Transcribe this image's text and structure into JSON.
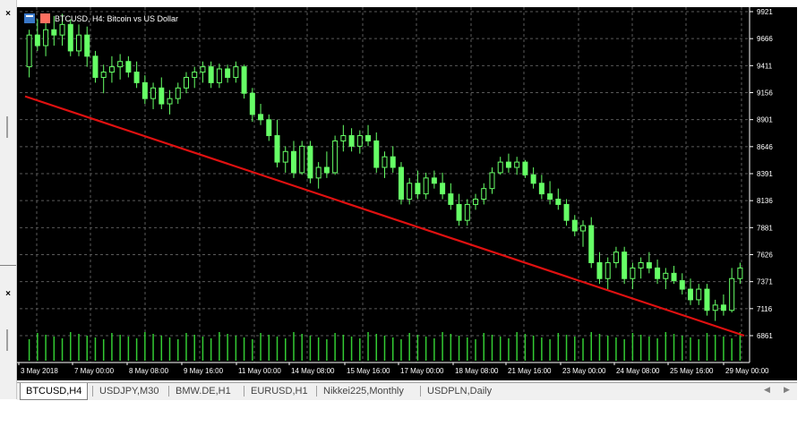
{
  "window": {
    "title": "BTCUSD, H4:  Bitcoin vs US Dollar"
  },
  "panel": {
    "close_label": "×"
  },
  "colors": {
    "background": "#000000",
    "grid": "#5a5a5a",
    "bull": "#66ff66",
    "bear": "#66ff66",
    "volume": "#33cc33",
    "trendline": "#e01010",
    "axis_text": "#ffffff"
  },
  "chart_data": {
    "type": "candlestick",
    "symbol": "BTCUSD",
    "timeframe": "H4",
    "title": "BTCUSD, H4:  Bitcoin vs US Dollar",
    "ylim": [
      6800,
      9921
    ],
    "price_ticks": [
      "9921",
      "9666",
      "9411",
      "9156",
      "8901",
      "8646",
      "8391",
      "8136",
      "7881",
      "7626",
      "7371",
      "7116",
      "6861"
    ],
    "date_labels": [
      "3 May 2018",
      "7 May 00:00",
      "8 May 08:00",
      "9 May 16:00",
      "11 May 00:00",
      "14 May 08:00",
      "15 May 16:00",
      "17 May 00:00",
      "18 May 08:00",
      "21 May 16:00",
      "23 May 00:00",
      "24 May 08:00",
      "25 May 16:00",
      "29 May 00:00"
    ],
    "candles": [
      [
        9400,
        9750,
        9300,
        9700
      ],
      [
        9700,
        9850,
        9550,
        9600
      ],
      [
        9600,
        9820,
        9500,
        9750
      ],
      [
        9750,
        9880,
        9600,
        9700
      ],
      [
        9700,
        9900,
        9600,
        9800
      ],
      [
        9800,
        9850,
        9500,
        9550
      ],
      [
        9550,
        9800,
        9500,
        9700
      ],
      [
        9700,
        9780,
        9400,
        9500
      ],
      [
        9500,
        9550,
        9250,
        9300
      ],
      [
        9300,
        9420,
        9150,
        9350
      ],
      [
        9350,
        9500,
        9250,
        9400
      ],
      [
        9400,
        9520,
        9280,
        9450
      ],
      [
        9450,
        9500,
        9300,
        9350
      ],
      [
        9350,
        9450,
        9200,
        9250
      ],
      [
        9250,
        9320,
        9050,
        9100
      ],
      [
        9100,
        9250,
        9000,
        9200
      ],
      [
        9200,
        9300,
        9000,
        9050
      ],
      [
        9050,
        9180,
        8950,
        9100
      ],
      [
        9100,
        9250,
        9050,
        9200
      ],
      [
        9200,
        9350,
        9150,
        9300
      ],
      [
        9300,
        9400,
        9200,
        9350
      ],
      [
        9350,
        9450,
        9250,
        9400
      ],
      [
        9400,
        9450,
        9200,
        9250
      ],
      [
        9250,
        9430,
        9200,
        9380
      ],
      [
        9380,
        9420,
        9250,
        9300
      ],
      [
        9300,
        9450,
        9250,
        9400
      ],
      [
        9400,
        9420,
        9100,
        9150
      ],
      [
        9150,
        9200,
        8880,
        8950
      ],
      [
        8950,
        9050,
        8850,
        8900
      ],
      [
        8900,
        8950,
        8700,
        8750
      ],
      [
        8750,
        8900,
        8450,
        8500
      ],
      [
        8500,
        8650,
        8400,
        8600
      ],
      [
        8600,
        8700,
        8350,
        8400
      ],
      [
        8400,
        8700,
        8380,
        8650
      ],
      [
        8650,
        8700,
        8300,
        8350
      ],
      [
        8350,
        8500,
        8250,
        8450
      ],
      [
        8450,
        8600,
        8350,
        8400
      ],
      [
        8400,
        8750,
        8380,
        8700
      ],
      [
        8700,
        8850,
        8600,
        8750
      ],
      [
        8750,
        8820,
        8600,
        8650
      ],
      [
        8650,
        8800,
        8580,
        8750
      ],
      [
        8750,
        8850,
        8650,
        8700
      ],
      [
        8700,
        8780,
        8400,
        8450
      ],
      [
        8450,
        8600,
        8350,
        8550
      ],
      [
        8550,
        8650,
        8400,
        8450
      ],
      [
        8450,
        8500,
        8100,
        8150
      ],
      [
        8150,
        8350,
        8100,
        8300
      ],
      [
        8300,
        8420,
        8150,
        8200
      ],
      [
        8200,
        8400,
        8150,
        8350
      ],
      [
        8350,
        8420,
        8250,
        8300
      ],
      [
        8300,
        8400,
        8150,
        8200
      ],
      [
        8200,
        8300,
        8050,
        8100
      ],
      [
        8100,
        8200,
        7900,
        7950
      ],
      [
        7950,
        8150,
        7900,
        8100
      ],
      [
        8100,
        8200,
        8050,
        8150
      ],
      [
        8150,
        8300,
        8100,
        8250
      ],
      [
        8250,
        8450,
        8200,
        8400
      ],
      [
        8400,
        8550,
        8380,
        8500
      ],
      [
        8500,
        8580,
        8400,
        8450
      ],
      [
        8450,
        8550,
        8380,
        8500
      ],
      [
        8500,
        8520,
        8350,
        8380
      ],
      [
        8380,
        8450,
        8250,
        8300
      ],
      [
        8300,
        8380,
        8150,
        8200
      ],
      [
        8200,
        8320,
        8100,
        8150
      ],
      [
        8150,
        8250,
        8050,
        8100
      ],
      [
        8100,
        8150,
        7900,
        7950
      ],
      [
        7950,
        8000,
        7800,
        7850
      ],
      [
        7850,
        7950,
        7700,
        7900
      ],
      [
        7900,
        7980,
        7500,
        7550
      ],
      [
        7550,
        7650,
        7350,
        7400
      ],
      [
        7400,
        7600,
        7300,
        7550
      ],
      [
        7550,
        7700,
        7500,
        7650
      ],
      [
        7650,
        7700,
        7350,
        7400
      ],
      [
        7400,
        7550,
        7300,
        7500
      ],
      [
        7500,
        7600,
        7400,
        7550
      ],
      [
        7550,
        7650,
        7450,
        7500
      ],
      [
        7500,
        7580,
        7350,
        7400
      ],
      [
        7400,
        7500,
        7300,
        7450
      ],
      [
        7450,
        7520,
        7350,
        7380
      ],
      [
        7380,
        7450,
        7250,
        7300
      ],
      [
        7300,
        7400,
        7150,
        7200
      ],
      [
        7200,
        7350,
        7150,
        7300
      ],
      [
        7300,
        7350,
        7050,
        7100
      ],
      [
        7100,
        7200,
        7000,
        7150
      ],
      [
        7150,
        7250,
        7050,
        7100
      ],
      [
        7100,
        7500,
        7080,
        7400
      ],
      [
        7400,
        7550,
        7350,
        7500
      ]
    ],
    "trendline": {
      "from": [
        0,
        9121
      ],
      "to": [
        86,
        6861
      ]
    },
    "volume_panel": true,
    "grid": true
  },
  "tabs": [
    {
      "label": "BTCUSD,H4",
      "active": true
    },
    {
      "label": "USDJPY,M30",
      "active": false
    },
    {
      "label": "BMW.DE,H1",
      "active": false
    },
    {
      "label": "EURUSD,H1",
      "active": false
    },
    {
      "label": "Nikkei225,Monthly",
      "active": false
    },
    {
      "label": "USDPLN,Daily",
      "active": false
    }
  ],
  "tab_scroll": {
    "left": "◀",
    "right": "▶"
  }
}
